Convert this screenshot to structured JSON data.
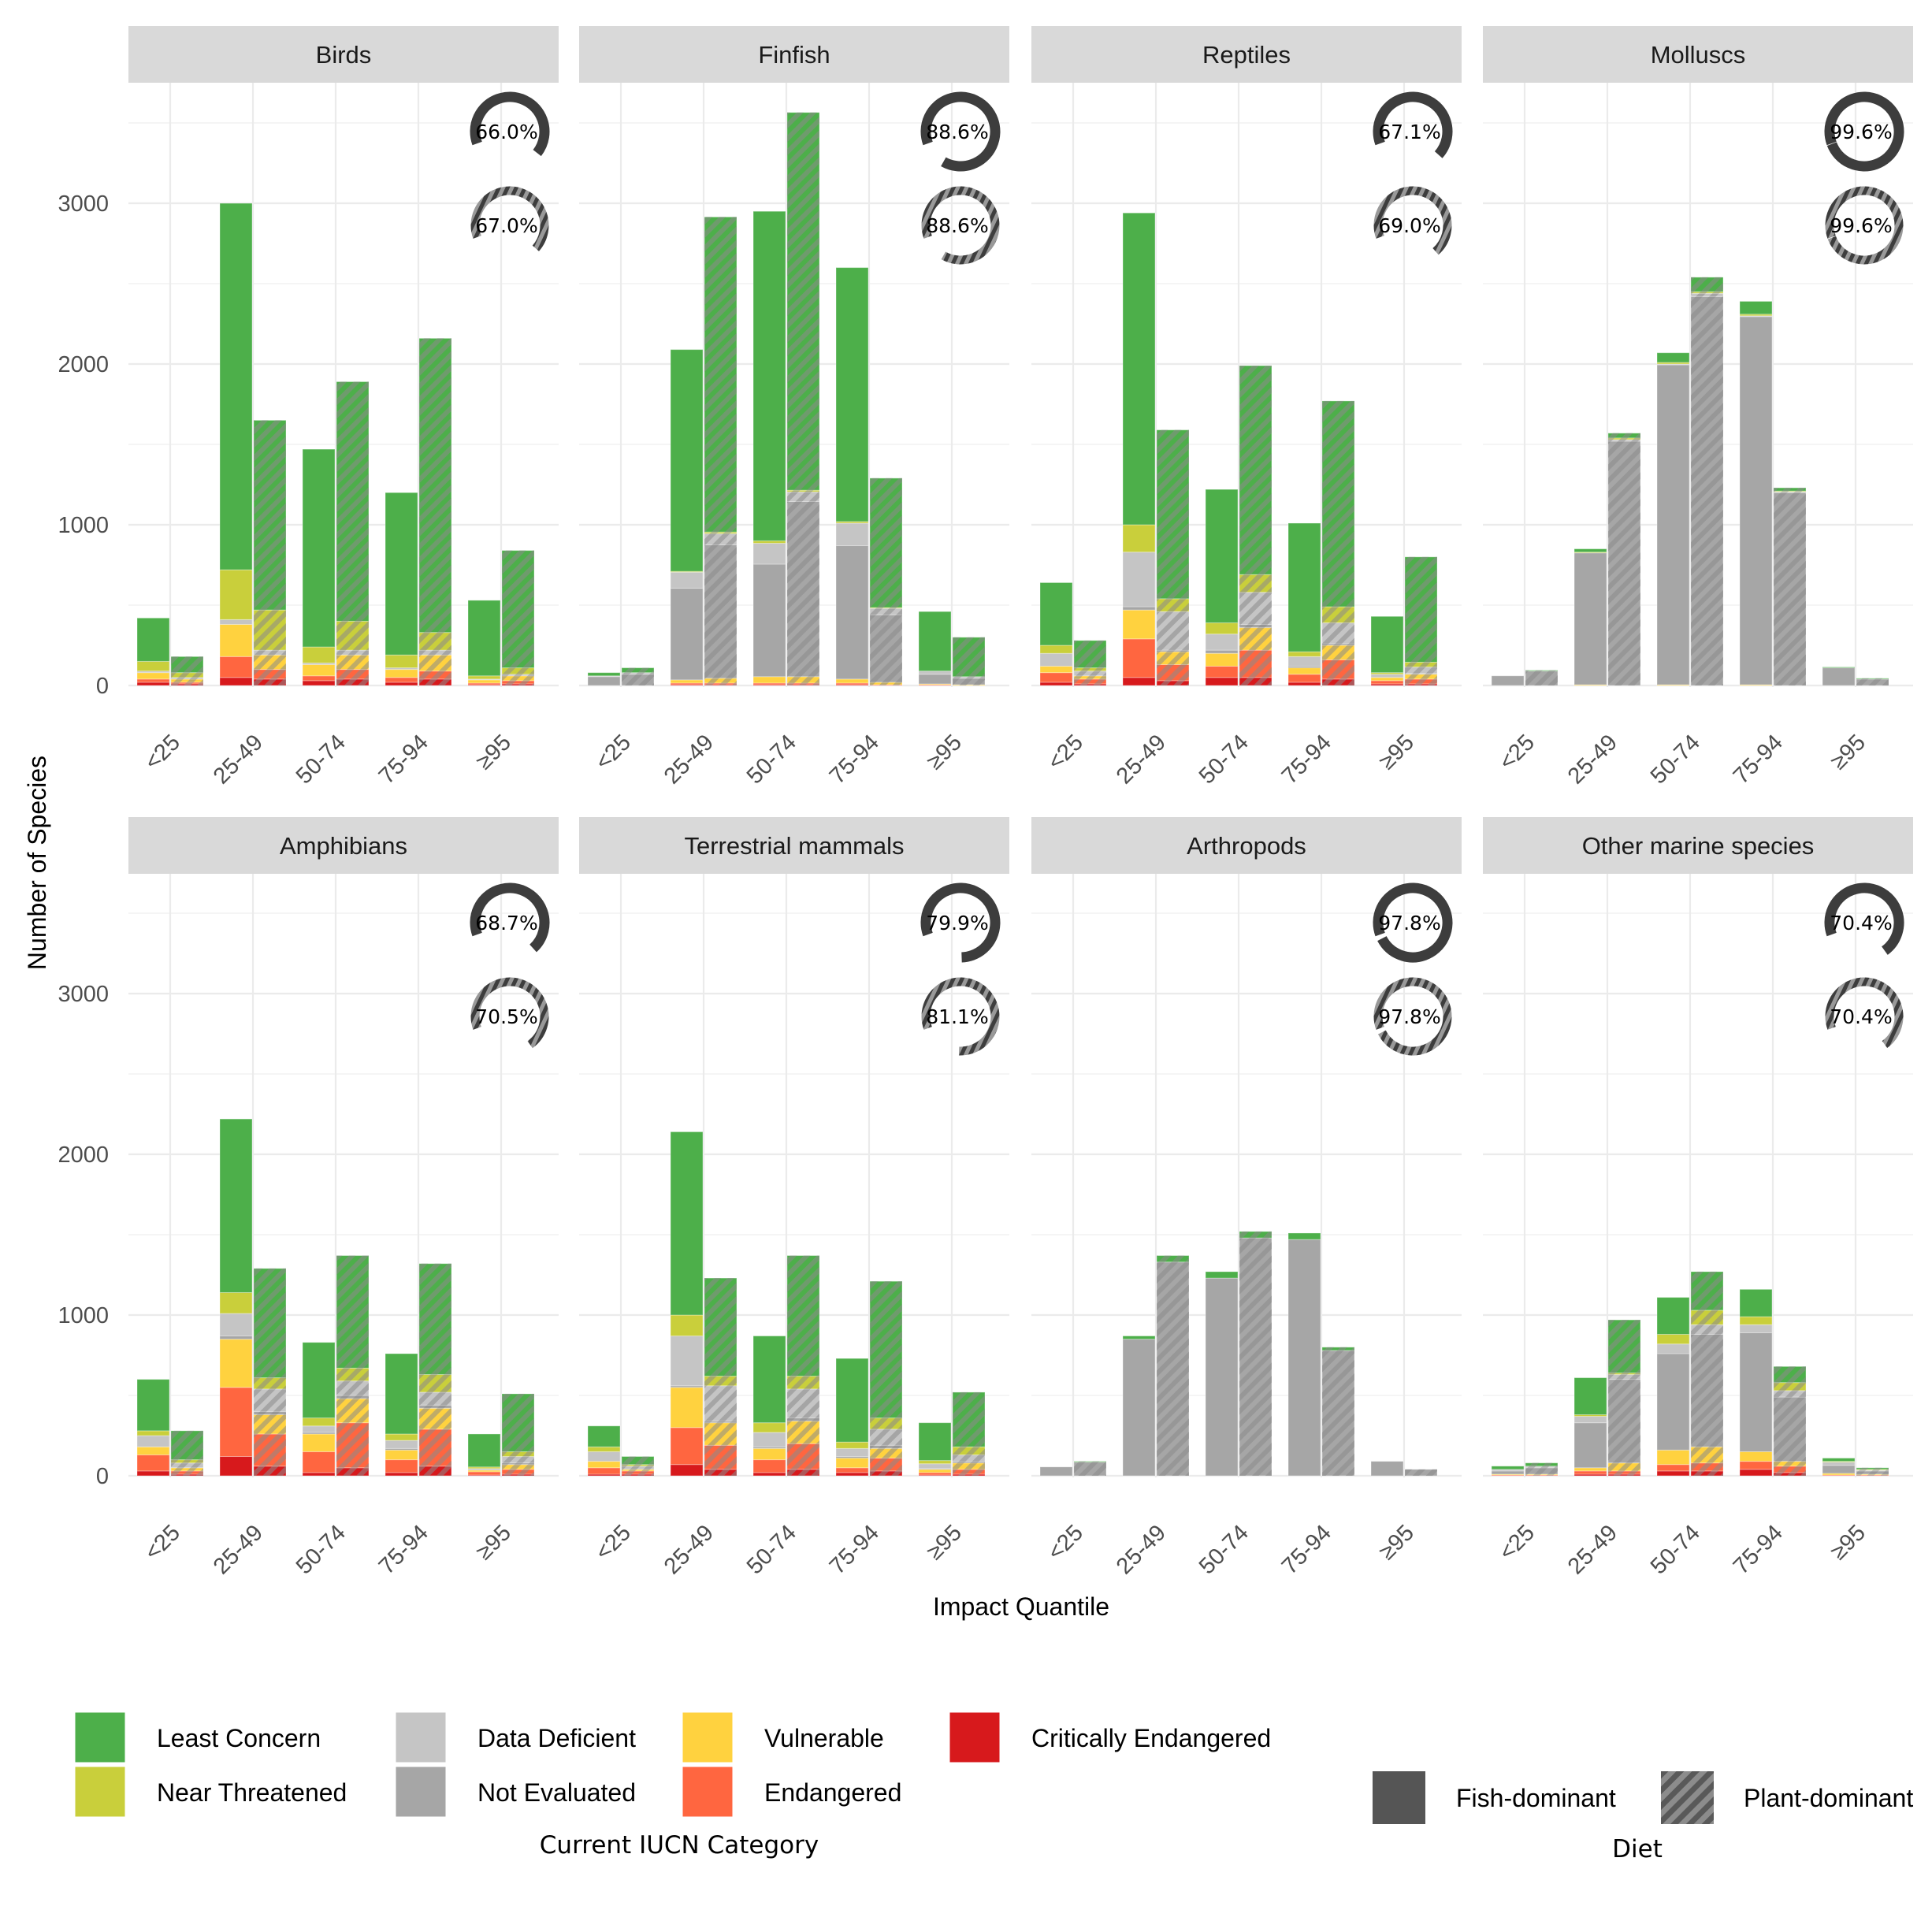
{
  "chart_data": {
    "type": "bar",
    "stacked": true,
    "facets_grid": "2 rows x 4 columns, shared y-axis",
    "xlabel": "Impact Quantile",
    "ylabel": "Number of Species",
    "ylim": [
      0,
      3700
    ],
    "yticks": [
      0,
      1000,
      2000,
      3000
    ],
    "categories": [
      "<25",
      "25-49",
      "50-74",
      "75-94",
      "≥95"
    ],
    "grid": true,
    "legend_position": "bottom",
    "iucn_legend": {
      "title": "Current IUCN Category",
      "entries": [
        {
          "key": "LC",
          "name": "Least Concern",
          "color": "#4DAF4A"
        },
        {
          "key": "NT",
          "name": "Near Threatened",
          "color": "#C9CF3B"
        },
        {
          "key": "DD",
          "name": "Data Deficient",
          "color": "#C5C5C5"
        },
        {
          "key": "NE",
          "name": "Not Evaluated",
          "color": "#A6A6A6"
        },
        {
          "key": "VU",
          "name": "Vulnerable",
          "color": "#FFD23F"
        },
        {
          "key": "EN",
          "name": "Endangered",
          "color": "#FF6640"
        },
        {
          "key": "CR",
          "name": "Critically Endangered",
          "color": "#D7191C"
        }
      ]
    },
    "diet_legend": {
      "title": "Diet",
      "entries": [
        {
          "key": "fish",
          "name": "Fish-dominant",
          "color": "#555555"
        },
        {
          "key": "plant",
          "name": "Plant-dominant",
          "pattern": "diagonal stripes"
        }
      ]
    },
    "facets": [
      {
        "name": "Birds",
        "donut_fish": "66.0%",
        "donut_plant": "67.0%",
        "donut_fish_value": 66.0,
        "donut_plant_value": 67.0,
        "fish": [
          {
            "CR": 20,
            "EN": 20,
            "VU": 40,
            "NE": 0,
            "DD": 10,
            "NT": 60,
            "LC": 270
          },
          {
            "CR": 50,
            "EN": 130,
            "VU": 200,
            "NE": 0,
            "DD": 30,
            "NT": 310,
            "LC": 2280
          },
          {
            "CR": 30,
            "EN": 30,
            "VU": 70,
            "NE": 0,
            "DD": 10,
            "NT": 100,
            "LC": 1230
          },
          {
            "CR": 20,
            "EN": 30,
            "VU": 50,
            "NE": 0,
            "DD": 10,
            "NT": 80,
            "LC": 1010
          },
          {
            "CR": 5,
            "EN": 10,
            "VU": 20,
            "NE": 0,
            "DD": 5,
            "NT": 20,
            "LC": 470
          }
        ],
        "plant": [
          {
            "CR": 10,
            "EN": 10,
            "VU": 20,
            "NE": 0,
            "DD": 10,
            "NT": 30,
            "LC": 100
          },
          {
            "CR": 40,
            "EN": 60,
            "VU": 90,
            "NE": 0,
            "DD": 30,
            "NT": 250,
            "LC": 1180
          },
          {
            "CR": 40,
            "EN": 60,
            "VU": 90,
            "NE": 0,
            "DD": 30,
            "NT": 180,
            "LC": 1490
          },
          {
            "CR": 40,
            "EN": 50,
            "VU": 100,
            "NE": 0,
            "DD": 30,
            "NT": 110,
            "LC": 1830
          },
          {
            "CR": 10,
            "EN": 20,
            "VU": 30,
            "NE": 0,
            "DD": 10,
            "NT": 40,
            "LC": 730
          }
        ]
      },
      {
        "name": "Finfish",
        "donut_fish": "88.6%",
        "donut_plant": "88.6%",
        "donut_fish_value": 88.6,
        "donut_plant_value": 88.6,
        "fish": [
          {
            "CR": 0,
            "EN": 0,
            "VU": 0,
            "NE": 55,
            "DD": 5,
            "NT": 0,
            "LC": 20
          },
          {
            "CR": 5,
            "EN": 10,
            "VU": 20,
            "NE": 570,
            "DD": 100,
            "NT": 5,
            "LC": 1380
          },
          {
            "CR": 5,
            "EN": 10,
            "VU": 40,
            "NE": 700,
            "DD": 130,
            "NT": 15,
            "LC": 2050
          },
          {
            "CR": 5,
            "EN": 10,
            "VU": 25,
            "NE": 830,
            "DD": 140,
            "NT": 10,
            "LC": 1580
          },
          {
            "CR": 0,
            "EN": 5,
            "VU": 5,
            "NE": 60,
            "DD": 20,
            "NT": 0,
            "LC": 370
          }
        ],
        "plant": [
          {
            "CR": 0,
            "EN": 0,
            "VU": 0,
            "NE": 70,
            "DD": 10,
            "NT": 0,
            "LC": 30
          },
          {
            "CR": 5,
            "EN": 10,
            "VU": 30,
            "NE": 830,
            "DD": 70,
            "NT": 10,
            "LC": 1960
          },
          {
            "CR": 5,
            "EN": 10,
            "VU": 40,
            "NE": 1090,
            "DD": 60,
            "NT": 10,
            "LC": 2350
          },
          {
            "CR": 0,
            "EN": 5,
            "VU": 15,
            "NE": 420,
            "DD": 40,
            "NT": 5,
            "LC": 805
          },
          {
            "CR": 0,
            "EN": 0,
            "VU": 5,
            "NE": 40,
            "DD": 10,
            "NT": 0,
            "LC": 245
          }
        ]
      },
      {
        "name": "Reptiles",
        "donut_fish": "67.1%",
        "donut_plant": "69.0%",
        "donut_fish_value": 67.1,
        "donut_plant_value": 69.0,
        "fish": [
          {
            "CR": 20,
            "EN": 60,
            "VU": 40,
            "NE": 0,
            "DD": 80,
            "NT": 50,
            "LC": 390
          },
          {
            "CR": 50,
            "EN": 240,
            "VU": 180,
            "NE": 20,
            "DD": 340,
            "NT": 170,
            "LC": 1940
          },
          {
            "CR": 50,
            "EN": 70,
            "VU": 80,
            "NE": 20,
            "DD": 100,
            "NT": 70,
            "LC": 830
          },
          {
            "CR": 20,
            "EN": 50,
            "VU": 40,
            "NE": 10,
            "DD": 60,
            "NT": 30,
            "LC": 800
          },
          {
            "CR": 10,
            "EN": 20,
            "VU": 20,
            "NE": 0,
            "DD": 20,
            "NT": 10,
            "LC": 350
          }
        ],
        "plant": [
          {
            "CR": 10,
            "EN": 30,
            "VU": 20,
            "NE": 0,
            "DD": 30,
            "NT": 20,
            "LC": 170
          },
          {
            "CR": 30,
            "EN": 100,
            "VU": 80,
            "NE": 10,
            "DD": 240,
            "NT": 80,
            "LC": 1050
          },
          {
            "CR": 50,
            "EN": 170,
            "VU": 140,
            "NE": 20,
            "DD": 200,
            "NT": 110,
            "LC": 1300
          },
          {
            "CR": 40,
            "EN": 120,
            "VU": 90,
            "NE": 10,
            "DD": 130,
            "NT": 100,
            "LC": 1280
          },
          {
            "CR": 10,
            "EN": 30,
            "VU": 30,
            "NE": 5,
            "DD": 40,
            "NT": 30,
            "LC": 655
          }
        ]
      },
      {
        "name": "Molluscs",
        "donut_fish": "99.6%",
        "donut_plant": "99.6%",
        "donut_fish_value": 99.6,
        "donut_plant_value": 99.6,
        "fish": [
          {
            "CR": 0,
            "EN": 0,
            "VU": 0,
            "NE": 60,
            "DD": 0,
            "NT": 0,
            "LC": 0
          },
          {
            "CR": 0,
            "EN": 0,
            "VU": 5,
            "NE": 820,
            "DD": 0,
            "NT": 5,
            "LC": 20
          },
          {
            "CR": 0,
            "EN": 0,
            "VU": 5,
            "NE": 1990,
            "DD": 5,
            "NT": 10,
            "LC": 60
          },
          {
            "CR": 0,
            "EN": 0,
            "VU": 5,
            "NE": 2290,
            "DD": 5,
            "NT": 10,
            "LC": 80
          },
          {
            "CR": 0,
            "EN": 0,
            "VU": 0,
            "NE": 110,
            "DD": 0,
            "NT": 0,
            "LC": 5
          }
        ],
        "plant": [
          {
            "CR": 0,
            "EN": 0,
            "VU": 0,
            "NE": 90,
            "DD": 0,
            "NT": 0,
            "LC": 5
          },
          {
            "CR": 0,
            "EN": 0,
            "VU": 0,
            "NE": 1520,
            "DD": 10,
            "NT": 10,
            "LC": 30
          },
          {
            "CR": 0,
            "EN": 0,
            "VU": 0,
            "NE": 2420,
            "DD": 20,
            "NT": 10,
            "LC": 90
          },
          {
            "CR": 0,
            "EN": 0,
            "VU": 0,
            "NE": 1200,
            "DD": 5,
            "NT": 5,
            "LC": 20
          },
          {
            "CR": 0,
            "EN": 0,
            "VU": 0,
            "NE": 40,
            "DD": 0,
            "NT": 0,
            "LC": 5
          }
        ]
      },
      {
        "name": "Amphibians",
        "donut_fish": "68.7%",
        "donut_plant": "70.5%",
        "donut_fish_value": 68.7,
        "donut_plant_value": 70.5,
        "fish": [
          {
            "CR": 30,
            "EN": 100,
            "VU": 50,
            "NE": 0,
            "DD": 70,
            "NT": 30,
            "LC": 320
          },
          {
            "CR": 120,
            "EN": 430,
            "VU": 300,
            "NE": 20,
            "DD": 140,
            "NT": 130,
            "LC": 1080
          },
          {
            "CR": 20,
            "EN": 130,
            "VU": 110,
            "NE": 10,
            "DD": 40,
            "NT": 50,
            "LC": 470
          },
          {
            "CR": 20,
            "EN": 80,
            "VU": 60,
            "NE": 10,
            "DD": 50,
            "NT": 40,
            "LC": 500
          },
          {
            "CR": 5,
            "EN": 20,
            "VU": 10,
            "NE": 0,
            "DD": 10,
            "NT": 10,
            "LC": 205
          }
        ],
        "plant": [
          {
            "CR": 10,
            "EN": 20,
            "VU": 20,
            "NE": 0,
            "DD": 30,
            "NT": 20,
            "LC": 180
          },
          {
            "CR": 60,
            "EN": 200,
            "VU": 120,
            "NE": 20,
            "DD": 140,
            "NT": 70,
            "LC": 680
          },
          {
            "CR": 50,
            "EN": 280,
            "VU": 150,
            "NE": 20,
            "DD": 90,
            "NT": 80,
            "LC": 700
          },
          {
            "CR": 60,
            "EN": 230,
            "VU": 130,
            "NE": 20,
            "DD": 80,
            "NT": 110,
            "LC": 690
          },
          {
            "CR": 10,
            "EN": 30,
            "VU": 30,
            "NE": 10,
            "DD": 40,
            "NT": 30,
            "LC": 360
          }
        ]
      },
      {
        "name": "Terrestrial mammals",
        "donut_fish": "79.9%",
        "donut_plant": "81.1%",
        "donut_fish_value": 79.9,
        "donut_plant_value": 81.1,
        "fish": [
          {
            "CR": 10,
            "EN": 40,
            "VU": 40,
            "NE": 0,
            "DD": 60,
            "NT": 30,
            "LC": 130
          },
          {
            "CR": 70,
            "EN": 230,
            "VU": 250,
            "NE": 10,
            "DD": 310,
            "NT": 130,
            "LC": 1140
          },
          {
            "CR": 20,
            "EN": 80,
            "VU": 70,
            "NE": 10,
            "DD": 90,
            "NT": 60,
            "LC": 540
          },
          {
            "CR": 20,
            "EN": 30,
            "VU": 60,
            "NE": 10,
            "DD": 50,
            "NT": 40,
            "LC": 520
          },
          {
            "CR": 5,
            "EN": 15,
            "VU": 20,
            "NE": 5,
            "DD": 30,
            "NT": 20,
            "LC": 235
          }
        ],
        "plant": [
          {
            "CR": 10,
            "EN": 20,
            "VU": 10,
            "NE": 0,
            "DD": 20,
            "NT": 10,
            "LC": 50
          },
          {
            "CR": 40,
            "EN": 150,
            "VU": 140,
            "NE": 10,
            "DD": 220,
            "NT": 60,
            "LC": 610
          },
          {
            "CR": 40,
            "EN": 160,
            "VU": 140,
            "NE": 20,
            "DD": 180,
            "NT": 80,
            "LC": 750
          },
          {
            "CR": 30,
            "EN": 80,
            "VU": 60,
            "NE": 20,
            "DD": 100,
            "NT": 70,
            "LC": 850
          },
          {
            "CR": 10,
            "EN": 30,
            "VU": 40,
            "NE": 10,
            "DD": 40,
            "NT": 50,
            "LC": 340
          }
        ]
      },
      {
        "name": "Arthropods",
        "donut_fish": "97.8%",
        "donut_plant": "97.8%",
        "donut_fish_value": 97.8,
        "donut_plant_value": 97.8,
        "fish": [
          {
            "CR": 0,
            "EN": 0,
            "VU": 0,
            "NE": 55,
            "DD": 0,
            "NT": 0,
            "LC": 0
          },
          {
            "CR": 0,
            "EN": 0,
            "VU": 0,
            "NE": 850,
            "DD": 0,
            "NT": 0,
            "LC": 20
          },
          {
            "CR": 0,
            "EN": 0,
            "VU": 0,
            "NE": 1230,
            "DD": 0,
            "NT": 0,
            "LC": 40
          },
          {
            "CR": 0,
            "EN": 0,
            "VU": 0,
            "NE": 1470,
            "DD": 0,
            "NT": 0,
            "LC": 40
          },
          {
            "CR": 0,
            "EN": 0,
            "VU": 0,
            "NE": 90,
            "DD": 0,
            "NT": 0,
            "LC": 0
          }
        ],
        "plant": [
          {
            "CR": 0,
            "EN": 0,
            "VU": 0,
            "NE": 85,
            "DD": 0,
            "NT": 0,
            "LC": 5
          },
          {
            "CR": 0,
            "EN": 0,
            "VU": 0,
            "NE": 1330,
            "DD": 0,
            "NT": 0,
            "LC": 40
          },
          {
            "CR": 0,
            "EN": 0,
            "VU": 0,
            "NE": 1480,
            "DD": 0,
            "NT": 0,
            "LC": 40
          },
          {
            "CR": 0,
            "EN": 0,
            "VU": 0,
            "NE": 780,
            "DD": 0,
            "NT": 0,
            "LC": 20
          },
          {
            "CR": 0,
            "EN": 0,
            "VU": 0,
            "NE": 40,
            "DD": 0,
            "NT": 0,
            "LC": 0
          }
        ]
      },
      {
        "name": "Other marine species",
        "donut_fish": "70.4%",
        "donut_plant": "70.4%",
        "donut_fish_value": 70.4,
        "donut_plant_value": 70.4,
        "fish": [
          {
            "CR": 0,
            "EN": 5,
            "VU": 5,
            "NE": 20,
            "DD": 10,
            "NT": 0,
            "LC": 20
          },
          {
            "CR": 10,
            "EN": 20,
            "VU": 20,
            "NE": 280,
            "DD": 40,
            "NT": 10,
            "LC": 230
          },
          {
            "CR": 30,
            "EN": 40,
            "VU": 90,
            "NE": 600,
            "DD": 60,
            "NT": 60,
            "LC": 230
          },
          {
            "CR": 40,
            "EN": 50,
            "VU": 60,
            "NE": 740,
            "DD": 50,
            "NT": 50,
            "LC": 170
          },
          {
            "CR": 0,
            "EN": 5,
            "VU": 10,
            "NE": 50,
            "DD": 20,
            "NT": 5,
            "LC": 20
          }
        ],
        "plant": [
          {
            "CR": 0,
            "EN": 5,
            "VU": 5,
            "NE": 40,
            "DD": 10,
            "NT": 0,
            "LC": 20
          },
          {
            "CR": 10,
            "EN": 20,
            "VU": 50,
            "NE": 520,
            "DD": 30,
            "NT": 10,
            "LC": 330
          },
          {
            "CR": 30,
            "EN": 50,
            "VU": 100,
            "NE": 700,
            "DD": 60,
            "NT": 90,
            "LC": 240
          },
          {
            "CR": 20,
            "EN": 40,
            "VU": 30,
            "NE": 400,
            "DD": 40,
            "NT": 50,
            "LC": 100
          },
          {
            "CR": 0,
            "EN": 5,
            "VU": 5,
            "NE": 20,
            "DD": 5,
            "NT": 5,
            "LC": 10
          }
        ]
      }
    ]
  }
}
